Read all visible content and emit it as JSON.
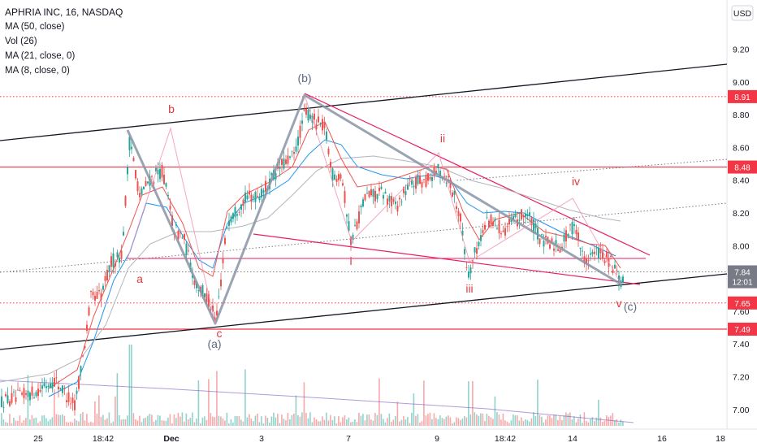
{
  "chart_data": {
    "type": "candlestick",
    "title": "APHRIA INC, 16, NASDAQ",
    "indicators": [
      "MA (50, close)",
      "Vol (26)",
      "MA (21, close, 0)",
      "MA (8, close, 0)"
    ],
    "currency_label": "USD",
    "y_ticks": [
      "9.20",
      "9.00",
      "8.80",
      "8.60",
      "8.40",
      "8.20",
      "8.00",
      "7.60",
      "7.40",
      "7.20",
      "7.00"
    ],
    "ylim": [
      6.8,
      9.4
    ],
    "x_ticks": [
      "25",
      "18:42",
      "Dec",
      "3",
      "7",
      "9",
      "18:42",
      "14",
      "16",
      "18"
    ],
    "price_tags": [
      {
        "label": "8.91",
        "value": 8.91,
        "color": "#f23645",
        "line": "dotted"
      },
      {
        "label": "8.48",
        "value": 8.48,
        "color": "#f23645",
        "line": "solid"
      },
      {
        "label": "7.84",
        "value": 7.84,
        "color": "#787b86",
        "line": "dotted"
      },
      {
        "label": "12:01",
        "value": 7.78,
        "color": "#787b86",
        "line": "none"
      },
      {
        "label": "7.65",
        "value": 7.65,
        "color": "#f23645",
        "line": "dotted"
      },
      {
        "label": "7.49",
        "value": 7.49,
        "color": "#f23645",
        "line": "solid"
      }
    ],
    "wave_labels": [
      {
        "text": "(b)",
        "color": "#5d6a82"
      },
      {
        "text": "b",
        "color": "#e0393e"
      },
      {
        "text": "a",
        "color": "#e0393e"
      },
      {
        "text": "c",
        "color": "#e0393e"
      },
      {
        "text": "(a)",
        "color": "#5d6a82"
      },
      {
        "text": "i",
        "color": "#e0393e"
      },
      {
        "text": "ii",
        "color": "#e0393e"
      },
      {
        "text": "iii",
        "color": "#e0393e"
      },
      {
        "text": "iv",
        "color": "#e0393e"
      },
      {
        "text": "v",
        "color": "#e0393e"
      },
      {
        "text": "(c)",
        "color": "#5d6a82"
      }
    ],
    "colors": {
      "up": "#26a69a",
      "down": "#ef5350",
      "ma50": "#b2b5be",
      "ma21": "#2196f3",
      "ma8": "#ef5350",
      "wave": "#8a94a6",
      "trend": "#e91e63"
    }
  }
}
